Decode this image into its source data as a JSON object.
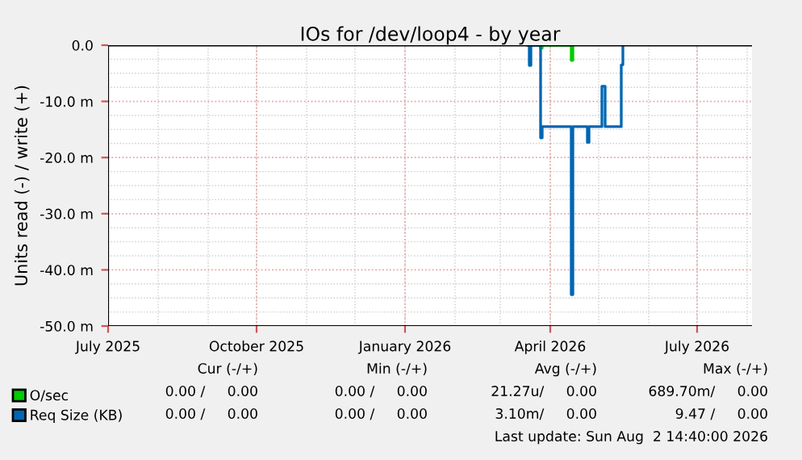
{
  "chart_data": {
    "type": "step",
    "title": "IOs for /dev/loop4 - by year",
    "ylabel": "Units read (-) / write (+)",
    "series": [
      {
        "name": "O/sec",
        "color": "#00cc00",
        "x": [
          "2026-03-25",
          "2026-03-26",
          "2026-03-27",
          "2026-04-14",
          "2026-04-15"
        ],
        "values": [
          0,
          -0.5,
          0,
          -2.7,
          0
        ]
      },
      {
        "name": "Req Size (KB)",
        "color": "#0066b3",
        "x": [
          "2026-03-18",
          "2026-03-19",
          "2026-03-20",
          "2026-03-26",
          "2026-03-27",
          "2026-04-14",
          "2026-04-15",
          "2026-04-24",
          "2026-04-25",
          "2026-05-03",
          "2026-05-05",
          "2026-05-15",
          "2026-05-16"
        ],
        "values": [
          0,
          -3.6,
          0,
          -16.5,
          -14.5,
          -44.4,
          -14.5,
          -17.3,
          -14.5,
          -7.3,
          -14.5,
          -3.5,
          0
        ]
      }
    ],
    "xlim": [
      "2025-07-01",
      "2026-08-04"
    ],
    "xticks": [
      {
        "value": "2025-07-01",
        "label": "July 2025"
      },
      {
        "value": "2025-10-01",
        "label": "October 2025"
      },
      {
        "value": "2026-01-01",
        "label": "January 2026"
      },
      {
        "value": "2026-04-01",
        "label": "April 2026"
      },
      {
        "value": "2026-07-01",
        "label": "July 2026"
      }
    ],
    "ylim": [
      -50,
      0
    ],
    "yticks": [
      {
        "value": 0,
        "label": "0.0"
      },
      {
        "value": -10,
        "label": "-10.0 m"
      },
      {
        "value": -20,
        "label": "-20.0 m"
      },
      {
        "value": -30,
        "label": "-30.0 m"
      },
      {
        "value": -40,
        "label": "-40.0 m"
      },
      {
        "value": -50,
        "label": "-50.0 m"
      }
    ],
    "grid": true,
    "legend": "bottom left",
    "annotations": [
      "Cur (-/+)",
      "Min (-/+)",
      "Avg (-/+)",
      "Max (-/+)",
      "0.00 /     0.00",
      "0.00 /     0.00",
      "21.27u/     0.00",
      "689.70m/     0.00",
      "0.00 /     0.00",
      "0.00 /     0.00",
      "3.10m/     0.00",
      "9.47 /     0.00",
      "Last update: Sun Aug  2 14:40:00 2026"
    ]
  }
}
